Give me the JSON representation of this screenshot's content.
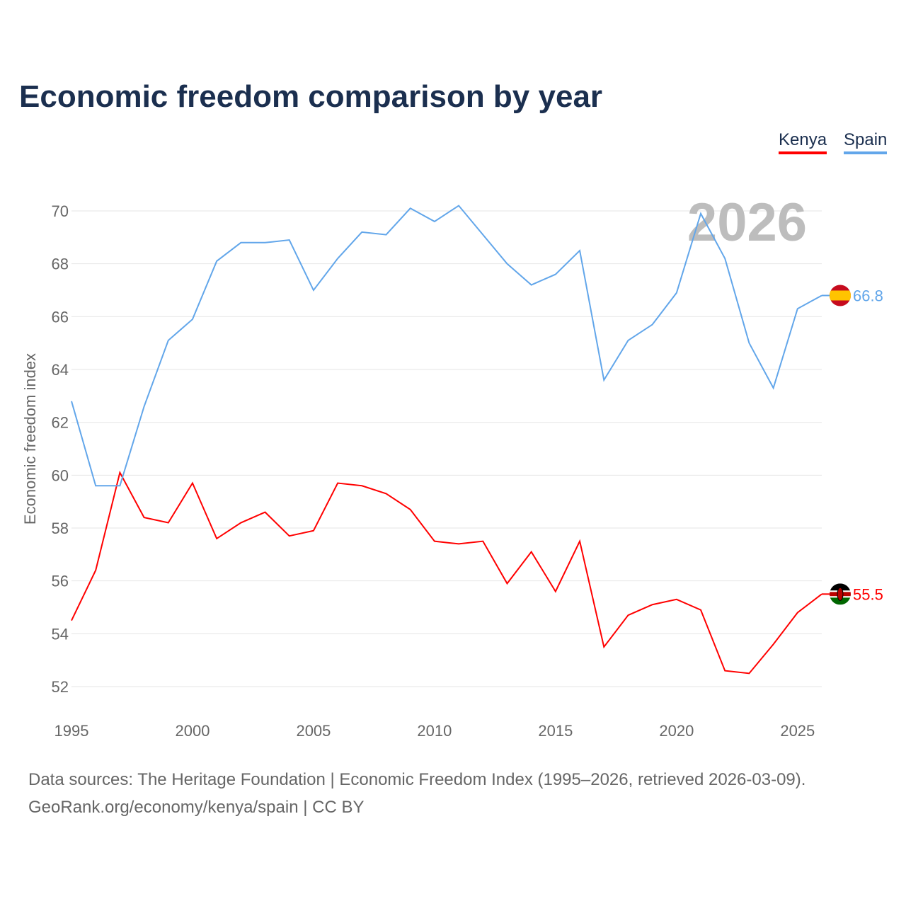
{
  "title": "Economic freedom comparison by year",
  "footer": {
    "line1": "Data sources: The Heritage Foundation | Economic Freedom Index (1995–2026, retrieved 2026-03-09).",
    "line2": "GeoRank.org/economy/kenya/spain | CC BY"
  },
  "chart_data": {
    "type": "line",
    "title": "Economic freedom comparison by year",
    "ylabel": "Economic freedom index",
    "xlabel": "",
    "ylim": [
      52,
      70
    ],
    "xlim": [
      1995,
      2026
    ],
    "yticks": [
      "52",
      "54",
      "56",
      "58",
      "60",
      "62",
      "64",
      "66",
      "68",
      "70"
    ],
    "xticks": [
      "1995",
      "2000",
      "2005",
      "2010",
      "2015",
      "2020",
      "2025"
    ],
    "year_label": "2026",
    "legend": "top-right",
    "x": [
      1995,
      1996,
      1997,
      1998,
      1999,
      2000,
      2001,
      2002,
      2003,
      2004,
      2005,
      2006,
      2007,
      2008,
      2009,
      2010,
      2011,
      2012,
      2013,
      2014,
      2015,
      2016,
      2017,
      2018,
      2019,
      2020,
      2021,
      2022,
      2023,
      2024,
      2025,
      2026
    ],
    "series": [
      {
        "name": "Kenya",
        "color": "#ff0000",
        "end_label": "55.5",
        "flag": "kenya-flag",
        "values": [
          54.5,
          56.4,
          60.1,
          58.4,
          58.2,
          59.7,
          57.6,
          58.2,
          58.6,
          57.7,
          57.9,
          59.7,
          59.6,
          59.3,
          58.7,
          57.5,
          57.4,
          57.5,
          55.9,
          57.1,
          55.6,
          57.5,
          53.5,
          54.7,
          55.1,
          55.3,
          54.9,
          52.6,
          52.5,
          53.6,
          54.8,
          55.5
        ]
      },
      {
        "name": "Spain",
        "color": "#62a6ea",
        "end_label": "66.8",
        "flag": "spain-flag",
        "values": [
          62.8,
          59.6,
          59.6,
          62.6,
          65.1,
          65.9,
          68.1,
          68.8,
          68.8,
          68.9,
          67.0,
          68.2,
          69.2,
          69.1,
          70.1,
          69.6,
          70.2,
          69.1,
          68.0,
          67.2,
          67.6,
          68.5,
          63.6,
          65.1,
          65.7,
          66.9,
          69.9,
          68.2,
          65.0,
          63.3,
          66.3,
          66.8
        ]
      }
    ]
  }
}
